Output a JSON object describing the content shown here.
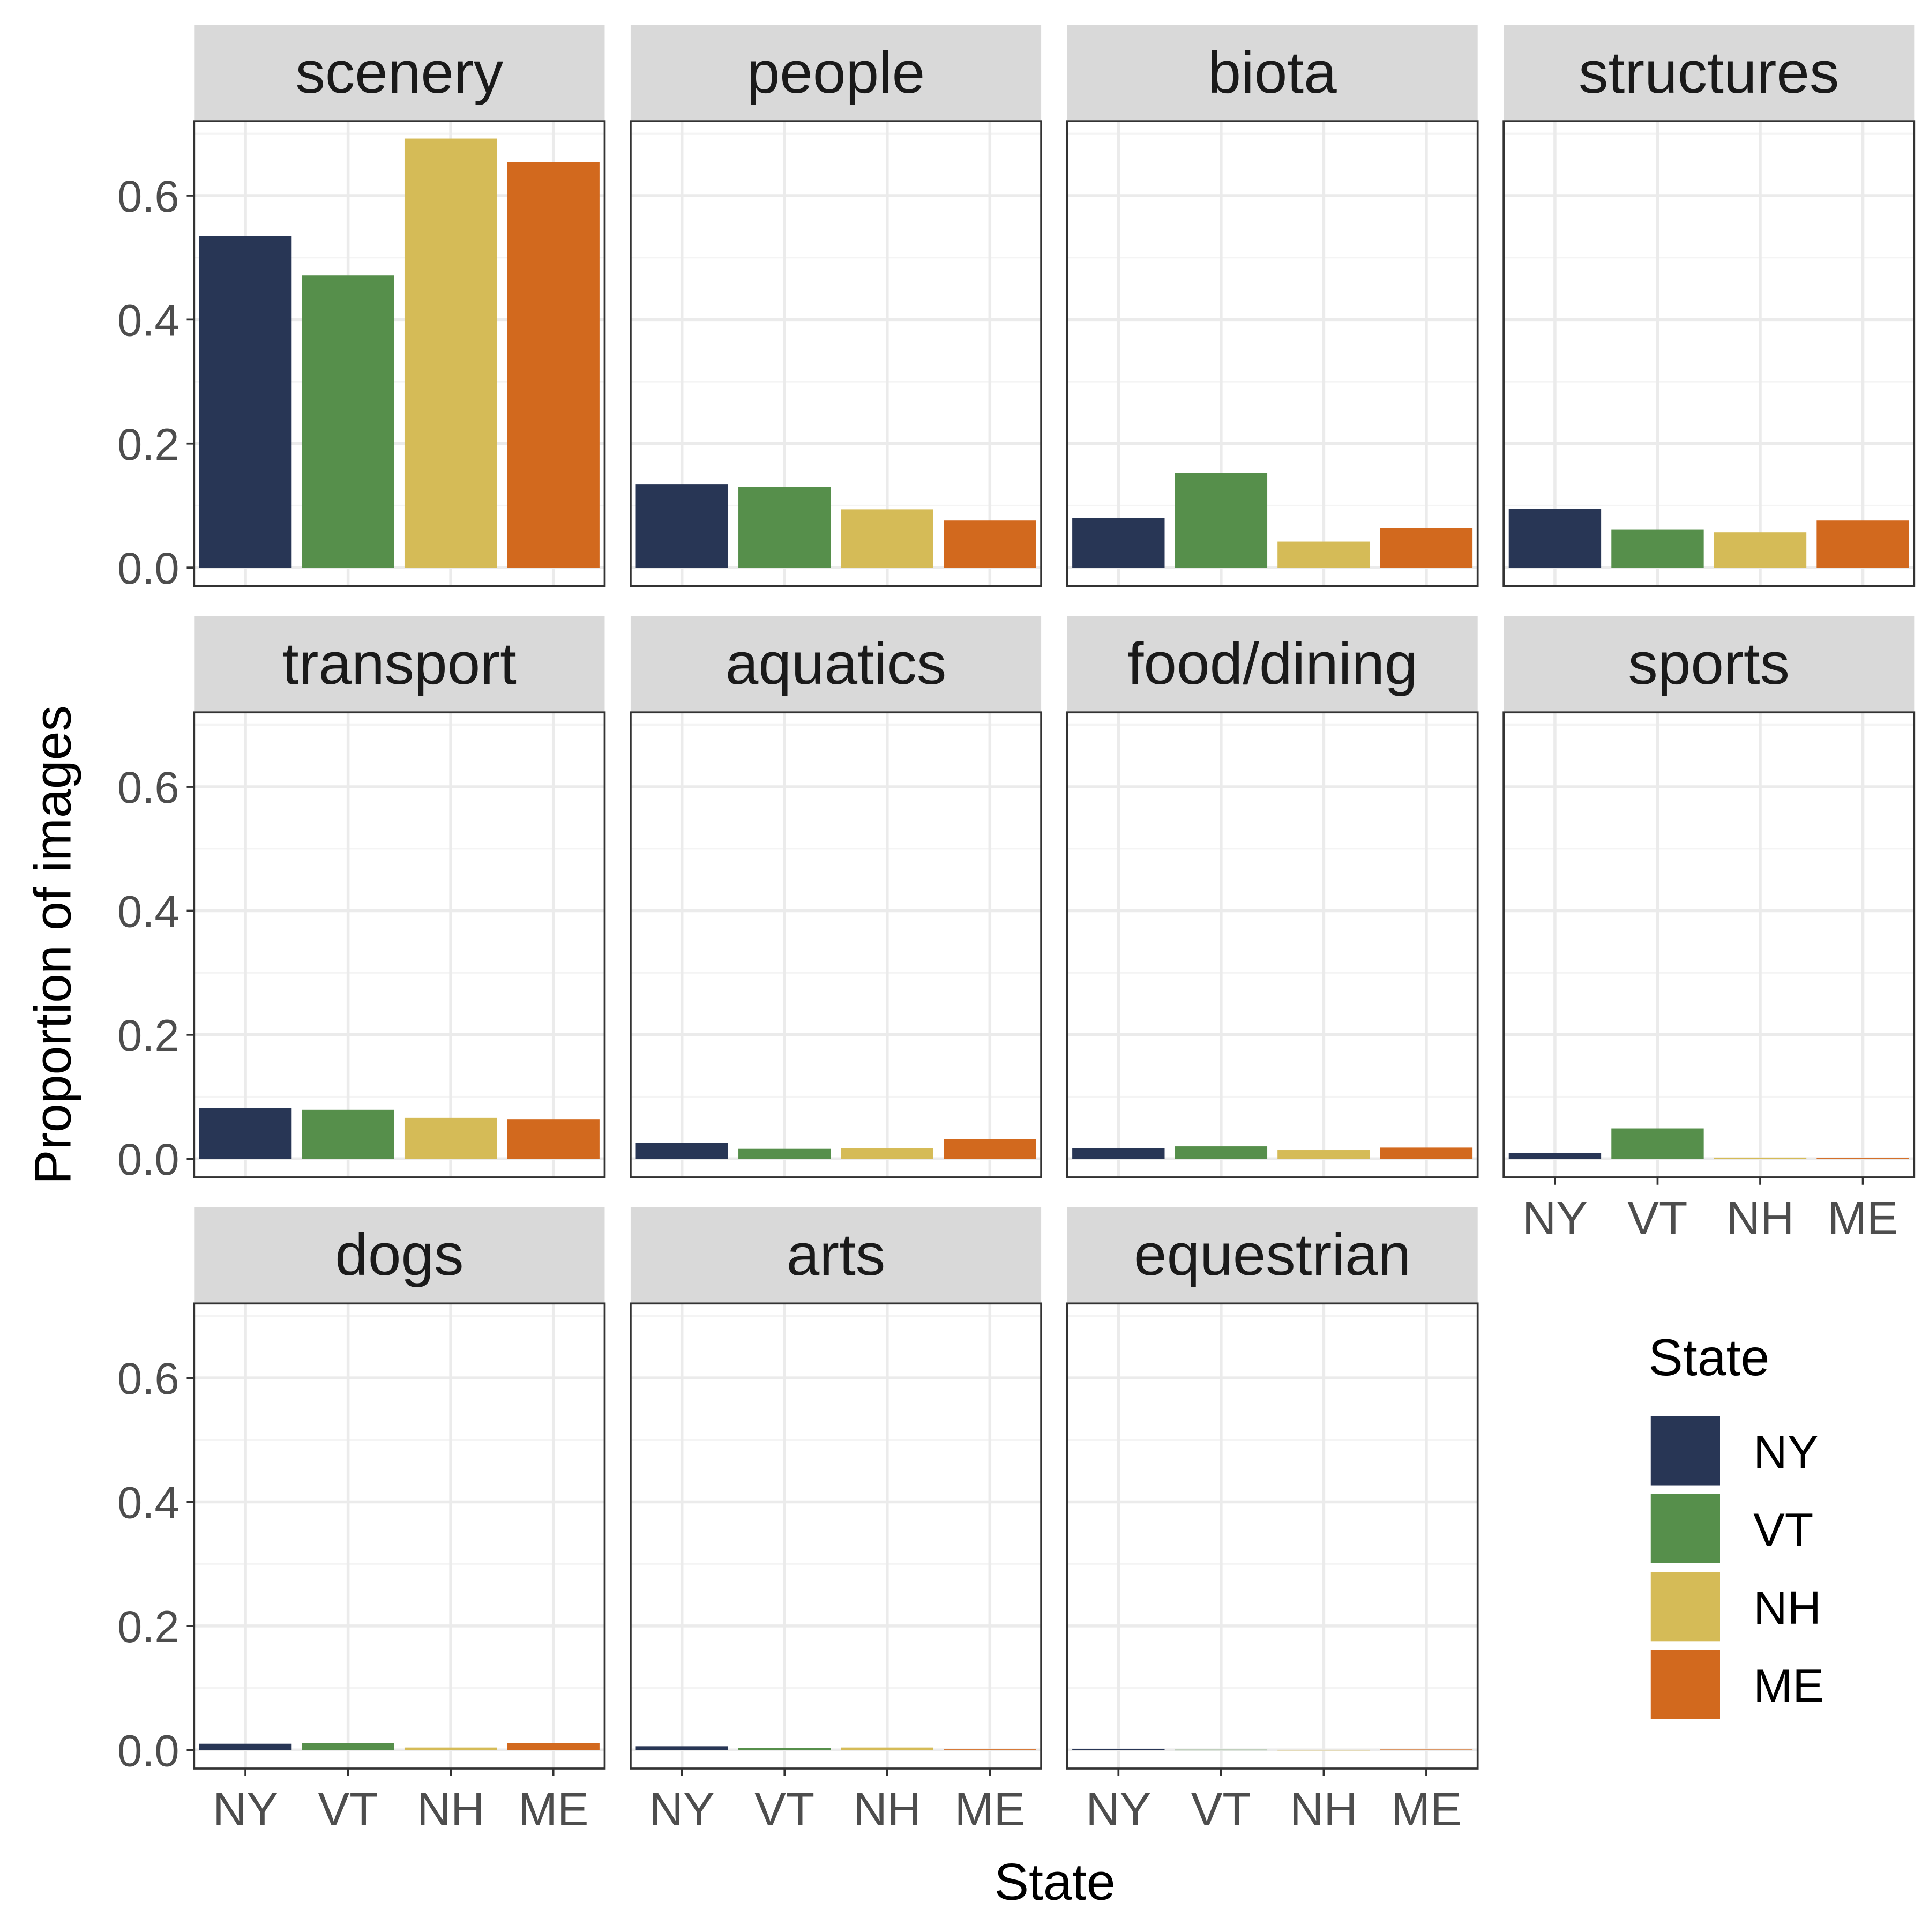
{
  "chart_data": {
    "type": "bar",
    "layout": "faceted",
    "xlabel": "State",
    "ylabel": "Proportion of images",
    "categories": [
      "NY",
      "VT",
      "NH",
      "ME"
    ],
    "ylim": [
      -0.03,
      0.72
    ],
    "yticks": [
      "0.0",
      "0.2",
      "0.4",
      "0.6"
    ],
    "ytick_values": [
      0.0,
      0.2,
      0.4,
      0.6
    ],
    "grid": true,
    "colors": {
      "NY": "#283655",
      "VT": "#568F4B",
      "NH": "#D5BB57",
      "ME": "#D2691E"
    },
    "legend": {
      "title": "State",
      "position": "right",
      "entries": [
        "NY",
        "VT",
        "NH",
        "ME"
      ]
    },
    "facets": [
      {
        "title": "scenery",
        "values": [
          0.535,
          0.471,
          0.692,
          0.654
        ]
      },
      {
        "title": "people",
        "values": [
          0.134,
          0.13,
          0.094,
          0.076
        ]
      },
      {
        "title": "biota",
        "values": [
          0.08,
          0.153,
          0.042,
          0.064
        ]
      },
      {
        "title": "structures",
        "values": [
          0.095,
          0.061,
          0.057,
          0.076
        ]
      },
      {
        "title": "transport",
        "values": [
          0.082,
          0.079,
          0.066,
          0.064
        ]
      },
      {
        "title": "aquatics",
        "values": [
          0.026,
          0.016,
          0.017,
          0.032
        ]
      },
      {
        "title": "food/dining",
        "values": [
          0.017,
          0.02,
          0.014,
          0.018
        ]
      },
      {
        "title": "sports",
        "values": [
          0.009,
          0.049,
          0.002,
          0.001
        ]
      },
      {
        "title": "dogs",
        "values": [
          0.01,
          0.011,
          0.004,
          0.011
        ]
      },
      {
        "title": "arts",
        "values": [
          0.006,
          0.003,
          0.004,
          0.001
        ]
      },
      {
        "title": "equestrian",
        "values": [
          0.002,
          0.0005,
          0.0003,
          0.0008
        ]
      }
    ]
  }
}
